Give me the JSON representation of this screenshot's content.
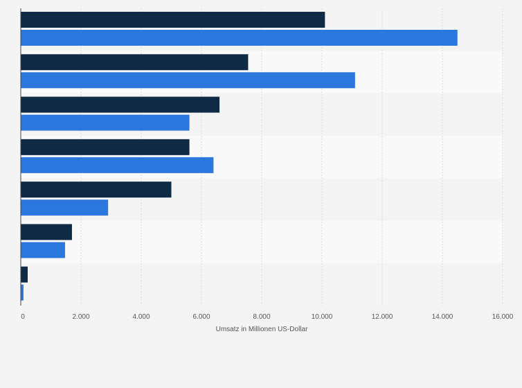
{
  "chart_data": {
    "type": "bar",
    "orientation": "horizontal",
    "categories": [
      "",
      "",
      "",
      "",
      "",
      "",
      ""
    ],
    "series": [
      {
        "color": "#0f2a44",
        "values": [
          10100,
          7550,
          6600,
          5600,
          5000,
          1700,
          230
        ]
      },
      {
        "color": "#2a78de",
        "values": [
          14500,
          11100,
          5600,
          6400,
          2900,
          1470,
          90
        ]
      }
    ],
    "xlabel": "Umsatz in Millionen US-Dollar",
    "ylabel": "",
    "xlim": [
      0,
      16000
    ],
    "x_ticks": [
      0,
      2000,
      4000,
      6000,
      8000,
      10000,
      12000,
      14000,
      16000
    ],
    "x_tick_labels": [
      "0",
      "2.000",
      "4.000",
      "6.000",
      "8.000",
      "10.000",
      "12.000",
      "14.000",
      "16.000"
    ],
    "grid": true,
    "legend": "none"
  }
}
